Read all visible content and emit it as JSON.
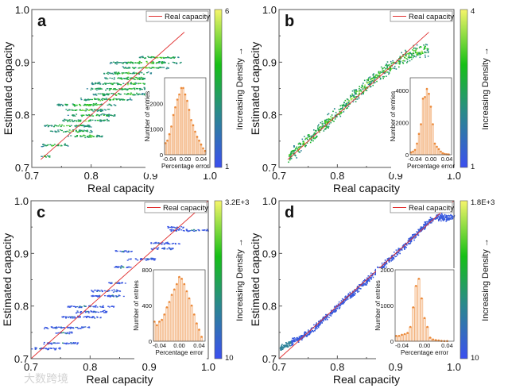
{
  "chart_data": [
    {
      "type": "scatter",
      "panel_label": "a",
      "xlabel": "Real capacity",
      "ylabel": "Estimated capacity",
      "xlim": [
        0.7,
        1.0
      ],
      "ylim": [
        0.7,
        1.0
      ],
      "xticks": [
        "0.7",
        "0.8",
        "0.9",
        "1.0"
      ],
      "yticks": [
        "0.7",
        "0.8",
        "0.9",
        "1.0"
      ],
      "legend": {
        "label": "Real capacity",
        "placement": "top-right",
        "color": "#e03030"
      },
      "reference_line": [
        [
          0.715,
          0.715
        ],
        [
          0.957,
          0.957
        ]
      ],
      "colorbar": {
        "label": "Increasing Density →",
        "min": "1",
        "max": "6"
      },
      "bands": [
        [
          0.722,
          0.715,
          0.73
        ],
        [
          0.743,
          0.715,
          0.76
        ],
        [
          0.76,
          0.76,
          0.82
        ],
        [
          0.77,
          0.73,
          0.8
        ],
        [
          0.78,
          0.72,
          0.8
        ],
        [
          0.79,
          0.75,
          0.83
        ],
        [
          0.8,
          0.76,
          0.84
        ],
        [
          0.81,
          0.75,
          0.83
        ],
        [
          0.82,
          0.74,
          0.84
        ],
        [
          0.83,
          0.78,
          0.87
        ],
        [
          0.84,
          0.8,
          0.9
        ],
        [
          0.85,
          0.79,
          0.9
        ],
        [
          0.86,
          0.8,
          0.92
        ],
        [
          0.87,
          0.82,
          0.93
        ],
        [
          0.88,
          0.82,
          0.9
        ],
        [
          0.89,
          0.85,
          0.93
        ],
        [
          0.9,
          0.83,
          0.95
        ],
        [
          0.91,
          0.88,
          0.95
        ]
      ],
      "inset": {
        "type": "bar",
        "xlabel": "Percentage error",
        "ylabel": "Number of entries",
        "xticks": [
          "-0.04",
          "0.00",
          "0.04"
        ],
        "yticks": [
          "0",
          "1000",
          "2000"
        ],
        "ymax": 3000,
        "xlim": [
          -0.052,
          0.052
        ],
        "x": [
          -0.05,
          -0.045,
          -0.04,
          -0.035,
          -0.03,
          -0.025,
          -0.02,
          -0.015,
          -0.01,
          -0.005,
          0,
          0.005,
          0.01,
          0.015,
          0.02,
          0.025,
          0.03,
          0.035,
          0.04,
          0.045,
          0.05
        ],
        "values": [
          450,
          550,
          800,
          1100,
          1550,
          1850,
          2150,
          2350,
          2600,
          2600,
          2350,
          2100,
          1750,
          1350,
          1150,
          900,
          700,
          550,
          400,
          250,
          150
        ]
      }
    },
    {
      "type": "scatter",
      "panel_label": "b",
      "xlabel": "Real capacity",
      "ylabel": "Estimated capacity",
      "xlim": [
        0.7,
        1.0
      ],
      "ylim": [
        0.7,
        1.0
      ],
      "xticks": [
        "0.7",
        "0.8",
        "0.9",
        "1.0"
      ],
      "yticks": [
        "0.7",
        "0.8",
        "0.9",
        "1.0"
      ],
      "legend": {
        "label": "Real capacity",
        "placement": "top-right",
        "color": "#e03030"
      },
      "reference_line": [
        [
          0.715,
          0.715
        ],
        [
          0.957,
          0.957
        ]
      ],
      "colorbar": {
        "label": "Increasing Density →",
        "min": "1",
        "max": "4"
      },
      "curve": [
        [
          0.715,
          0.72
        ],
        [
          0.75,
          0.755
        ],
        [
          0.8,
          0.805
        ],
        [
          0.85,
          0.86
        ],
        [
          0.9,
          0.9
        ],
        [
          0.93,
          0.92
        ],
        [
          0.955,
          0.925
        ]
      ],
      "spread": 0.018,
      "inset": {
        "type": "bar",
        "xlabel": "Percentage error",
        "ylabel": "Number of entries",
        "xticks": [
          "-0.04",
          "0.00",
          "0.04"
        ],
        "yticks": [
          "0",
          "2000",
          "4000"
        ],
        "ymax": 4800,
        "xlim": [
          -0.052,
          0.052
        ],
        "x": [
          -0.05,
          -0.045,
          -0.04,
          -0.035,
          -0.03,
          -0.025,
          -0.02,
          -0.015,
          -0.01,
          -0.005,
          0,
          0.005,
          0.01,
          0.015,
          0.02,
          0.025,
          0.03,
          0.035,
          0.04,
          0.045
        ],
        "values": [
          150,
          200,
          300,
          700,
          1300,
          1900,
          3500,
          3600,
          4100,
          3800,
          3000,
          1900,
          700,
          500,
          350,
          200,
          100,
          50,
          30,
          20
        ]
      }
    },
    {
      "type": "scatter",
      "panel_label": "c",
      "xlabel": "Real capacity",
      "ylabel": "Estimated capacity",
      "xlim": [
        0.7,
        1.0
      ],
      "ylim": [
        0.7,
        1.0
      ],
      "xticks": [
        "0.7",
        "0.8",
        "0.9",
        "1.0"
      ],
      "yticks": [
        "0.7",
        "0.8",
        "0.9",
        "1.0"
      ],
      "legend": {
        "label": "Real capacity",
        "placement": "top-right",
        "color": "#e03030"
      },
      "reference_line": [
        [
          0.7,
          0.7
        ],
        [
          1.0,
          1.0
        ]
      ],
      "colorbar": {
        "label": "Increasing Density →",
        "min": "10",
        "max": "3.2E+3"
      },
      "bands": [
        [
          0.72,
          0.7,
          0.75
        ],
        [
          0.73,
          0.72,
          0.78
        ],
        [
          0.75,
          0.74,
          0.77
        ],
        [
          0.76,
          0.72,
          0.8
        ],
        [
          0.78,
          0.75,
          0.82
        ],
        [
          0.79,
          0.77,
          0.83
        ],
        [
          0.8,
          0.76,
          0.84
        ],
        [
          0.82,
          0.8,
          0.86
        ],
        [
          0.83,
          0.8,
          0.85
        ],
        [
          0.845,
          0.83,
          0.86
        ],
        [
          0.875,
          0.84,
          0.87
        ],
        [
          0.89,
          0.86,
          0.91
        ],
        [
          0.905,
          0.84,
          0.87
        ],
        [
          0.91,
          0.9,
          0.94
        ],
        [
          0.92,
          0.9,
          0.95
        ],
        [
          0.945,
          0.93,
          1.0
        ],
        [
          0.95,
          0.93,
          0.96
        ]
      ],
      "inset": {
        "type": "bar",
        "xlabel": "Percentage error",
        "ylabel": "Number of entries",
        "xticks": [
          "-0.04",
          "0.00",
          "0.04"
        ],
        "yticks": [
          "0",
          "400",
          "800"
        ],
        "ymax": 800,
        "xlim": [
          -0.052,
          0.052
        ],
        "x": [
          -0.05,
          -0.045,
          -0.04,
          -0.035,
          -0.03,
          -0.025,
          -0.02,
          -0.015,
          -0.01,
          -0.005,
          0,
          0.005,
          0.01,
          0.015,
          0.02,
          0.025,
          0.03,
          0.035,
          0.04,
          0.045
        ],
        "values": [
          220,
          180,
          220,
          240,
          300,
          380,
          440,
          520,
          580,
          640,
          720,
          700,
          640,
          560,
          480,
          400,
          300,
          200,
          130,
          50
        ]
      }
    },
    {
      "type": "scatter",
      "panel_label": "d",
      "xlabel": "Real capacity",
      "ylabel": "Estimated capacity",
      "xlim": [
        0.7,
        1.0
      ],
      "ylim": [
        0.7,
        1.0
      ],
      "xticks": [
        "0.7",
        "0.8",
        "0.9",
        "1.0"
      ],
      "yticks": [
        "0.7",
        "0.8",
        "0.9",
        "1.0"
      ],
      "legend": {
        "label": "Real capacity",
        "placement": "top-right",
        "color": "#e03030"
      },
      "reference_line": [
        [
          0.7,
          0.7
        ],
        [
          1.0,
          1.0
        ]
      ],
      "colorbar": {
        "label": "Increasing Density →",
        "min": "10",
        "max": "1.8E+3"
      },
      "curve": [
        [
          0.7,
          0.72
        ],
        [
          0.75,
          0.75
        ],
        [
          0.8,
          0.8
        ],
        [
          0.85,
          0.85
        ],
        [
          0.9,
          0.9
        ],
        [
          0.95,
          0.955
        ],
        [
          0.97,
          0.97
        ],
        [
          1.0,
          0.97
        ]
      ],
      "spread": 0.009,
      "inset": {
        "type": "bar",
        "xlabel": "Percentage error",
        "ylabel": "Number of entries",
        "xticks": [
          "-0.04",
          "0.00",
          "0.04"
        ],
        "yticks": [
          "0",
          "1000",
          "2000"
        ],
        "ymax": 2000,
        "xlim": [
          -0.052,
          0.052
        ],
        "x": [
          -0.05,
          -0.045,
          -0.04,
          -0.035,
          -0.03,
          -0.025,
          -0.02,
          -0.015,
          -0.01,
          -0.005,
          0,
          0.005,
          0.01,
          0.015,
          0.02,
          0.025,
          0.03,
          0.035,
          0.04
        ],
        "values": [
          150,
          150,
          180,
          200,
          230,
          400,
          950,
          1550,
          1750,
          1200,
          650,
          400,
          100,
          50,
          30,
          20,
          10,
          5,
          5
        ]
      }
    }
  ],
  "watermark": "大数跨境",
  "colors": {
    "low": "#3b4ff0",
    "mid": "#1fa02a",
    "high": "#f6f56a",
    "hist": "#f0a060",
    "line": "#e03030"
  }
}
